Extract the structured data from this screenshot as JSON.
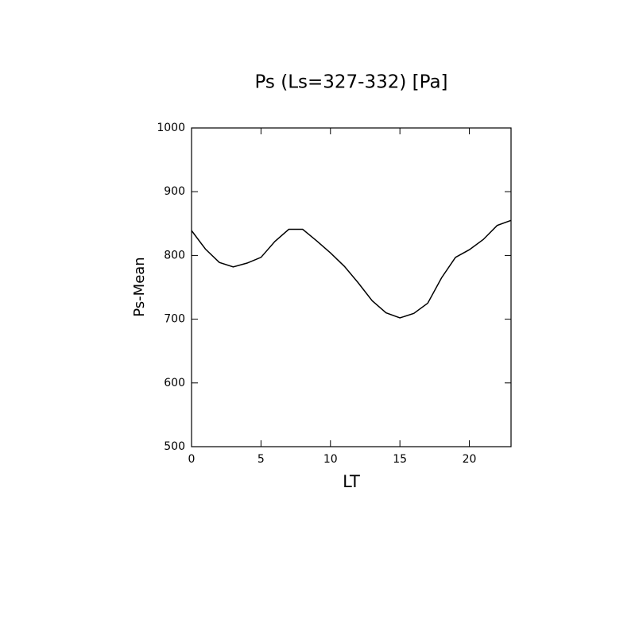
{
  "chart_data": {
    "type": "line",
    "title": "Ps (Ls=327-332) [Pa]",
    "x_label": "LT",
    "y_label": "Ps-Mean",
    "x": [
      0,
      1,
      2,
      3,
      4,
      5,
      6,
      7,
      8,
      9,
      10,
      11,
      12,
      13,
      14,
      15,
      16,
      17,
      18,
      19,
      20,
      21,
      22,
      23
    ],
    "series": [
      {
        "name": "Ps-Mean",
        "color": "#000000",
        "values": [
          839,
          810,
          789,
          782,
          788,
          797,
          822,
          841,
          841,
          823,
          804,
          783,
          757,
          729,
          710,
          702,
          709,
          725,
          765,
          797,
          809,
          825,
          847,
          855
        ]
      }
    ],
    "xlim": [
      0,
      23
    ],
    "xticks": [
      0,
      5,
      10,
      15,
      20
    ],
    "ylim": [
      500,
      1000
    ],
    "yticks": [
      500,
      600,
      700,
      800,
      900,
      1000
    ]
  }
}
